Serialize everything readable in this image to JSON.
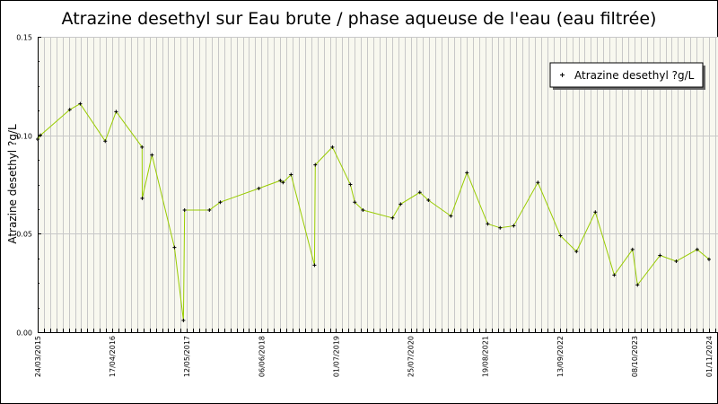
{
  "chart_data": {
    "type": "line",
    "title": "Atrazine desethyl sur Eau brute / phase aqueuse de l'eau (eau filtrée)",
    "xlabel": "",
    "ylabel": "Atrazine desethyl ?g/L",
    "x_unit": "days since 24/03/2015",
    "xlim": [
      0,
      3566
    ],
    "ylim": [
      0,
      0.15
    ],
    "yticks": [
      {
        "value": 0,
        "label": "0.00"
      },
      {
        "value": 0.05,
        "label": "0.05"
      },
      {
        "value": 0.1,
        "label": "0.10"
      },
      {
        "value": 0.15,
        "label": "0.15"
      }
    ],
    "xticks": [
      {
        "value": 0,
        "label": "24/03/2015"
      },
      {
        "value": 391,
        "label": "17/04/2016"
      },
      {
        "value": 782,
        "label": "12/05/2017"
      },
      {
        "value": 1173,
        "label": "06/06/2018"
      },
      {
        "value": 1564,
        "label": "01/07/2019"
      },
      {
        "value": 1955,
        "label": "25/07/2020"
      },
      {
        "value": 2346,
        "label": "19/08/2021"
      },
      {
        "value": 2737,
        "label": "13/09/2022"
      },
      {
        "value": 3128,
        "label": "08/10/2023"
      },
      {
        "value": 3519,
        "label": "01/11/2024"
      }
    ],
    "grid": true,
    "legend_position": "top-right",
    "series": [
      {
        "name": "Atrazine desethyl ?g/L",
        "color": "#99cc00",
        "x": [
          0,
          14,
          168,
          223,
          354,
          411,
          547,
          548,
          599,
          717,
          764,
          770,
          900,
          957,
          1159,
          1272,
          1286,
          1328,
          1451,
          1455,
          1545,
          1639,
          1662,
          1705,
          1860,
          1902,
          2003,
          2048,
          2166,
          2250,
          2359,
          2424,
          2495,
          2622,
          2740,
          2824,
          2923,
          3022,
          3118,
          3144,
          3262,
          3347,
          3457,
          3519
        ],
        "y": [
          0.098,
          0.1,
          0.113,
          0.116,
          0.097,
          0.112,
          0.094,
          0.068,
          0.09,
          0.043,
          0.006,
          0.062,
          0.062,
          0.066,
          0.073,
          0.077,
          0.076,
          0.08,
          0.034,
          0.085,
          0.094,
          0.075,
          0.066,
          0.062,
          0.058,
          0.065,
          0.071,
          0.067,
          0.059,
          0.081,
          0.055,
          0.053,
          0.054,
          0.076,
          0.049,
          0.041,
          0.061,
          0.029,
          0.042,
          0.024,
          0.039,
          0.036,
          0.042,
          0.037
        ]
      }
    ]
  }
}
